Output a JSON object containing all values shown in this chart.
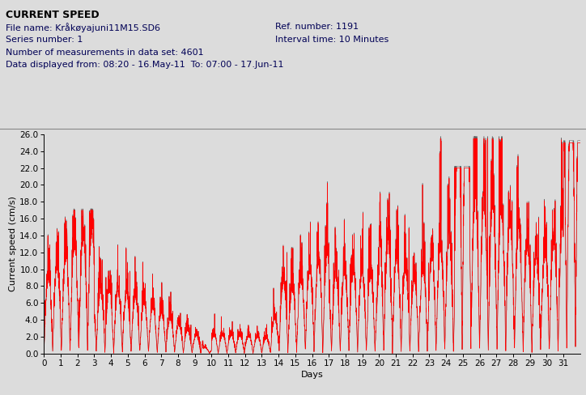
{
  "title": "CURRENT SPEED",
  "info_line1": "File name: Kråkøyajuni11M15.SD6",
  "info_line1_right": "Ref. number: 1191",
  "info_line2": "Series number: 1",
  "info_line2_right": "Interval time: 10 Minutes",
  "info_line3": "Number of measurements in data set: 4601",
  "info_line4": "Data displayed from: 08:20 - 16.May-11  To: 07:00 - 17.Jun-11",
  "ylabel": "Current speed (cm/s)",
  "xlabel": "Days",
  "xlim": [
    0,
    32
  ],
  "ylim": [
    0,
    26.0
  ],
  "yticks": [
    0.0,
    2.0,
    4.0,
    6.0,
    8.0,
    10.0,
    12.0,
    14.0,
    16.0,
    18.0,
    20.0,
    22.0,
    24.0,
    26.0
  ],
  "xticks": [
    0,
    1,
    2,
    3,
    4,
    5,
    6,
    7,
    8,
    9,
    10,
    11,
    12,
    13,
    14,
    15,
    16,
    17,
    18,
    19,
    20,
    21,
    22,
    23,
    24,
    25,
    26,
    27,
    28,
    29,
    30,
    31
  ],
  "line_color": "#FF0000",
  "dark_line_color": "#333333",
  "bg_color": "#DCDCDC",
  "header_bg": "#DCDCDC",
  "n_points": 4601,
  "duration_days": 32,
  "seed": 42
}
